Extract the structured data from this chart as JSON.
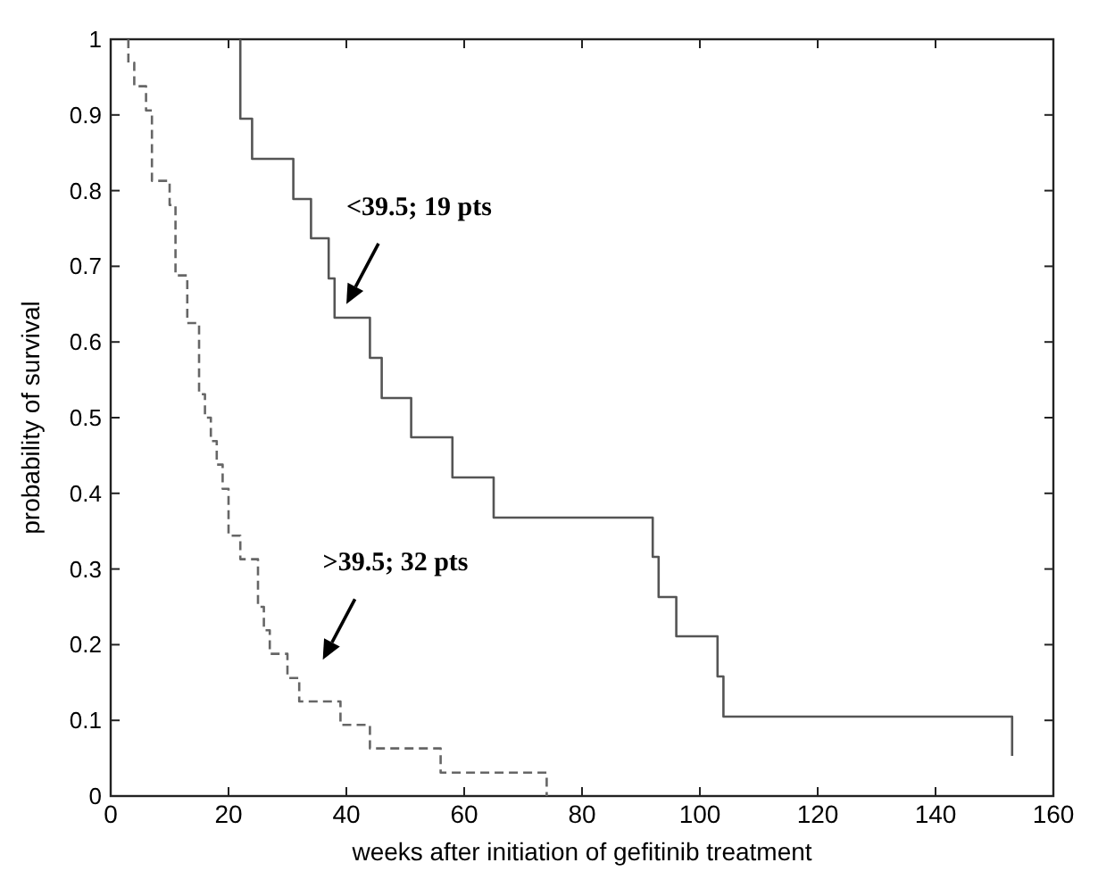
{
  "chart_data": {
    "type": "step",
    "xlabel": "weeks after initiation of gefitinib treatment",
    "ylabel": "probability of survival",
    "xlim": [
      0,
      160
    ],
    "xticks": [
      0,
      20,
      40,
      60,
      80,
      100,
      120,
      140,
      160
    ],
    "ylim": [
      0,
      1
    ],
    "yticks": [
      0,
      0.1,
      0.2,
      0.3,
      0.4,
      0.5,
      0.6,
      0.7,
      0.8,
      0.9,
      1
    ],
    "series": [
      {
        "color": "#555555",
        "line_style": "solid",
        "x": [
          22,
          22,
          24,
          31,
          34,
          37,
          38,
          44,
          46,
          51,
          58,
          65,
          92,
          93,
          96,
          103,
          104,
          153,
          153
        ],
        "values": [
          1,
          0.895,
          0.842,
          0.789,
          0.737,
          0.684,
          0.632,
          0.579,
          0.526,
          0.474,
          0.421,
          0.368,
          0.316,
          0.263,
          0.211,
          0.158,
          0.105,
          0.105,
          0.053
        ]
      },
      {
        "color": "#666666",
        "line_style": "dashed",
        "x": [
          3,
          3,
          4,
          6,
          7,
          10,
          11,
          13,
          15,
          16,
          17,
          18,
          19,
          20,
          22,
          25,
          26,
          27,
          30,
          32,
          39,
          44,
          56,
          74
        ],
        "values": [
          1,
          0.969,
          0.938,
          0.906,
          0.813,
          0.781,
          0.688,
          0.625,
          0.531,
          0.5,
          0.469,
          0.438,
          0.406,
          0.344,
          0.313,
          0.25,
          0.219,
          0.188,
          0.156,
          0.125,
          0.094,
          0.063,
          0.031,
          0
        ]
      }
    ],
    "annotations": [
      "<39.5; 19 pts",
      ">39.5; 32 pts"
    ]
  }
}
